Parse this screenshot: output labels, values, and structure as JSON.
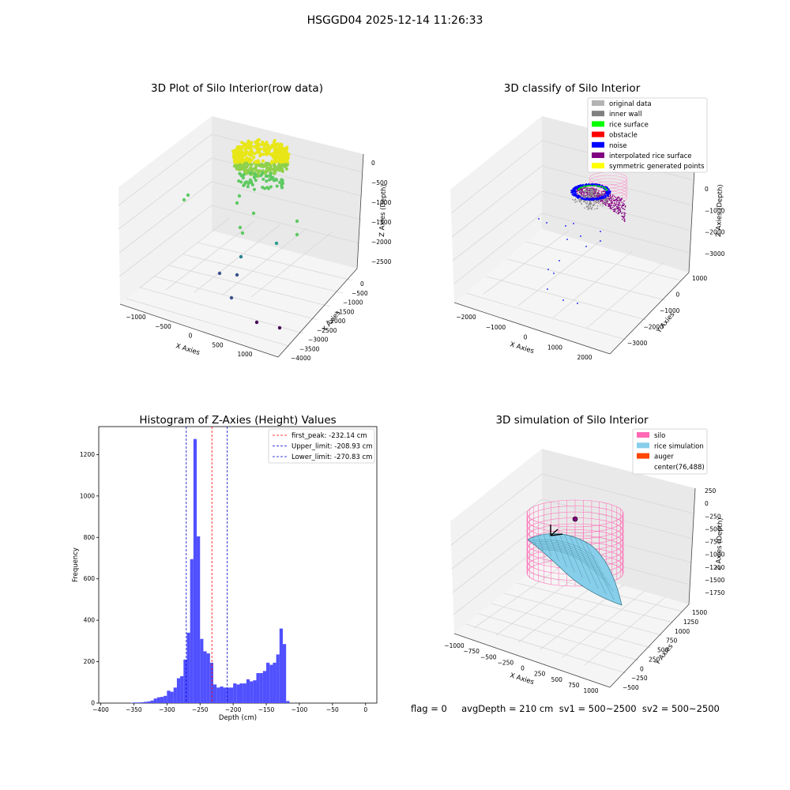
{
  "supertitle": "HSGGD04 2025-12-14 11:26:33",
  "footer": "flag = 0     avgDepth = 210 cm  sv1 = 500~2500  sv2 = 500~2500",
  "colors": {
    "histogram_bar": "#5050ff",
    "first_peak_line": "#ff0000",
    "limit_lines": "#0000cc",
    "original_data": "#b3b3b3",
    "inner_wall": "#808080",
    "rice_surface": "#00ff00",
    "obstacle": "#ff0000",
    "noise": "#0000ff",
    "interpolated_rice_surface": "#800080",
    "symmetric_generated_points": "#ffff00",
    "silo": "#ff69b4",
    "rice_simulation": "#87ceeb",
    "auger": "#ff4500"
  },
  "chart_data": [
    {
      "type": "scatter",
      "subtype": "3d",
      "title": "3D Plot of Silo Interior(row data)",
      "xlabel": "X Axies",
      "ylabel": "Y Axies",
      "zlabel": "Z Axies (Depth)",
      "x_ticks": [
        "−1000",
        "−500",
        "0",
        "500",
        "1000"
      ],
      "y_ticks": [
        "0",
        "−500",
        "−1000",
        "−1500",
        "−2000",
        "−2500",
        "−3000",
        "−3500",
        "−4000"
      ],
      "z_ticks": [
        "0",
        "−500",
        "−1000",
        "−1500",
        "−2000",
        "−2500"
      ],
      "colormap": "viridis"
    },
    {
      "type": "scatter",
      "subtype": "3d",
      "title": "3D classify of Silo Interior",
      "xlabel": "X Axies",
      "ylabel": "Y Axies",
      "zlabel": "Z Axies (Depth)",
      "x_ticks": [
        "−2000",
        "−1000",
        "0",
        "1000",
        "2000"
      ],
      "y_ticks": [
        "1000",
        "0",
        "−1000",
        "−2000",
        "−3000"
      ],
      "z_ticks": [
        "0",
        "−1000",
        "−2000",
        "−3000"
      ],
      "legend": [
        "original data",
        "inner wall",
        "rice surface",
        "obstacle",
        "noise",
        "interpolated rice surface",
        "symmetric generated points"
      ],
      "legend_position": "top-right"
    },
    {
      "type": "bar",
      "subtype": "histogram",
      "title": "Histogram of Z-Axies (Height) Values",
      "xlabel": "Depth (cm)",
      "ylabel": "Frequency",
      "xlim": [
        -403,
        17
      ],
      "ylim": [
        0,
        1335
      ],
      "x_ticks": [
        -400,
        -350,
        -300,
        -250,
        -200,
        -150,
        -100,
        -50,
        0
      ],
      "x_tick_labels": [
        "−400",
        "−350",
        "−300",
        "−250",
        "−200",
        "−150",
        "−100",
        "−50",
        "0"
      ],
      "y_ticks": [
        0,
        200,
        400,
        600,
        800,
        1000,
        1200
      ],
      "y_tick_labels": [
        "0",
        "200",
        "400",
        "600",
        "800",
        "1000",
        "1200"
      ],
      "bin_width": 5,
      "bins_start": [
        -355,
        -350,
        -345,
        -340,
        -335,
        -330,
        -325,
        -320,
        -315,
        -310,
        -305,
        -300,
        -295,
        -290,
        -285,
        -280,
        -275,
        -270,
        -265,
        -260,
        -255,
        -250,
        -245,
        -240,
        -235,
        -230,
        -225,
        -220,
        -215,
        -210,
        -205,
        -200,
        -195,
        -190,
        -185,
        -180,
        -175,
        -170,
        -165,
        -160,
        -155,
        -150,
        -145,
        -140,
        -135,
        -130,
        -125,
        -120,
        -115,
        -110,
        -105,
        -100,
        -95,
        -90,
        -85,
        -80,
        -75,
        -70,
        -65,
        -60,
        -55,
        -50,
        -45,
        -40,
        -35,
        -30,
        -25,
        -20,
        -15,
        -10,
        -5
      ],
      "frequencies": [
        2,
        3,
        3,
        4,
        6,
        8,
        12,
        22,
        28,
        30,
        35,
        60,
        55,
        75,
        120,
        130,
        210,
        340,
        695,
        1275,
        805,
        310,
        250,
        240,
        195,
        90,
        75,
        80,
        75,
        75,
        75,
        95,
        90,
        95,
        95,
        115,
        105,
        110,
        145,
        145,
        155,
        195,
        185,
        195,
        235,
        360,
        285,
        10,
        0,
        0,
        0,
        0,
        0,
        0,
        0,
        0,
        0,
        0,
        0,
        0,
        0,
        0,
        0,
        0,
        0,
        0,
        0,
        0,
        0,
        0,
        0
      ],
      "vlines": [
        {
          "label": "first_peak: -232.14 cm",
          "x": -232.14,
          "color": "#ff0000"
        },
        {
          "label": "Upper_limit: -208.93 cm",
          "x": -208.93,
          "color": "#0000cc"
        },
        {
          "label": "Lower_limit: -270.83 cm",
          "x": -270.83,
          "color": "#0000cc"
        }
      ],
      "legend_position": "top-right"
    },
    {
      "type": "area",
      "subtype": "3d-surface",
      "title": "3D simulation of Silo Interior",
      "xlabel": "X Axies",
      "ylabel": "Y Axies",
      "zlabel": "Z Axies (Depth)",
      "x_ticks": [
        "−1000",
        "−750",
        "−500",
        "−250",
        "0",
        "250",
        "500",
        "750",
        "1000"
      ],
      "y_ticks": [
        "1500",
        "1250",
        "1000",
        "750",
        "500",
        "250",
        "0",
        "−250",
        "−500"
      ],
      "z_ticks": [
        "250",
        "0",
        "−250",
        "−500",
        "−750",
        "−1000",
        "−1250",
        "−1500",
        "−1750"
      ],
      "legend": [
        "silo",
        "rice simulation",
        "auger",
        "center(76,488)"
      ],
      "legend_position": "top-right"
    }
  ]
}
